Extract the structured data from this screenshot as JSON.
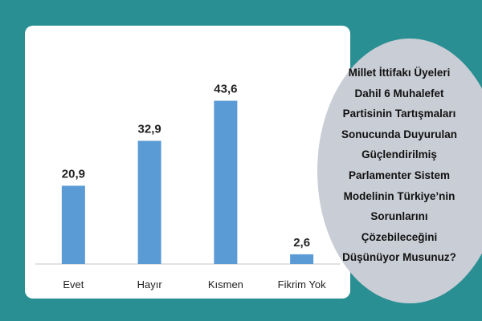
{
  "chart_data": {
    "type": "bar",
    "categories": [
      "Evet",
      "Hayır",
      "Kısmen",
      "Fikrim Yok"
    ],
    "values": [
      20.9,
      32.9,
      43.6,
      2.6
    ],
    "value_labels": [
      "20,9",
      "32,9",
      "43,6",
      "2,6"
    ],
    "title": "",
    "xlabel": "",
    "ylabel": "",
    "ylim": [
      0,
      45
    ],
    "grid": false,
    "colors": {
      "bar": "#5b9bd5",
      "baseline": "#d9d9d9",
      "label": "#222222"
    }
  },
  "question": {
    "lines": [
      "Millet İttifakı Üyeleri",
      "Dahil 6 Muhalefet",
      "Partisinin Tartışmaları",
      "Sonucunda Duyurulan",
      "Güçlendirilmiş",
      "Parlamenter Sistem",
      "Modelinin Türkiye’nin",
      "Sorunlarını",
      "Çözebileceğini",
      "Düşünüyor Musunuz?"
    ]
  },
  "colors": {
    "background": "#2a8f93",
    "card": "#ffffff",
    "blob": "#c9cdd5"
  }
}
